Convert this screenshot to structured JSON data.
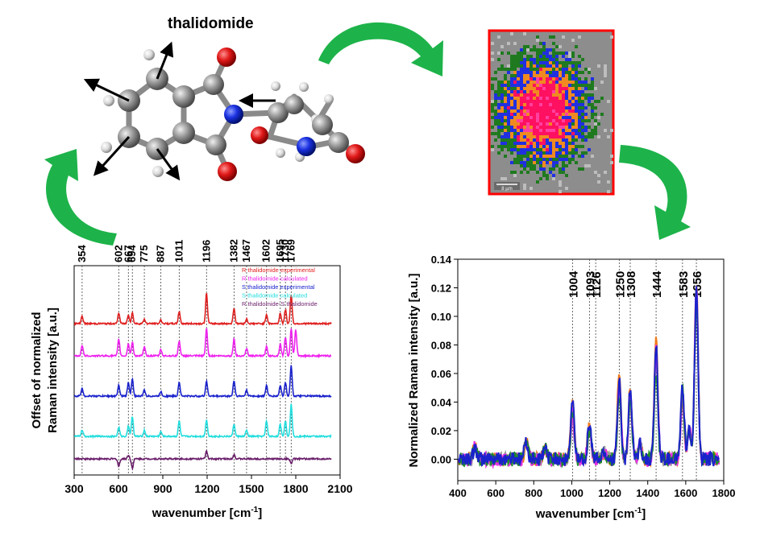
{
  "molecule": {
    "title": "thalidomide"
  },
  "scale_bar": {
    "label": "8 µm"
  },
  "colors": {
    "arrow": "#1db34a",
    "map_border": "#ff0000"
  },
  "chart_data": [
    {
      "type": "line",
      "xlabel": "wavenumber [cm",
      "xlabel_sup": "-1",
      "xlabel_end": "]",
      "ylabel_line1": "Offset of normalized",
      "ylabel_line2": "Raman intensity [a.u.]",
      "xlim": [
        300,
        2100
      ],
      "xticks": [
        "300",
        "600",
        "900",
        "1200",
        "1500",
        "1800",
        "2100"
      ],
      "peak_labels": [
        "354",
        "602",
        "667",
        "694",
        "775",
        "887",
        "1011",
        "1196",
        "1382",
        "1467",
        "1602",
        "1695",
        "1730",
        "1769"
      ],
      "peak_positions": [
        354,
        602,
        667,
        694,
        775,
        887,
        1011,
        1196,
        1382,
        1467,
        1602,
        1695,
        1730,
        1769
      ],
      "legend": [
        "R thalidomide experimental",
        "R thalidomide calculated",
        "S thalidomide experimental",
        "S thalidomide calculated",
        "R thalidomide-S thalidomide"
      ],
      "series": [
        {
          "name": "R thalidomide experimental",
          "color": "#e02020",
          "offset": 4,
          "peaks": [
            [
              354,
              0.25
            ],
            [
              602,
              0.35
            ],
            [
              667,
              0.3
            ],
            [
              694,
              0.35
            ],
            [
              775,
              0.15
            ],
            [
              887,
              0.12
            ],
            [
              1011,
              0.4
            ],
            [
              1196,
              1.0
            ],
            [
              1382,
              0.5
            ],
            [
              1467,
              0.15
            ],
            [
              1602,
              0.3
            ],
            [
              1695,
              0.35
            ],
            [
              1730,
              0.45
            ],
            [
              1769,
              0.95
            ]
          ]
        },
        {
          "name": "R thalidomide calculated",
          "color": "#ee22ee",
          "offset": 3,
          "peaks": [
            [
              354,
              0.35
            ],
            [
              602,
              0.55
            ],
            [
              667,
              0.4
            ],
            [
              694,
              0.45
            ],
            [
              775,
              0.3
            ],
            [
              887,
              0.2
            ],
            [
              1011,
              0.5
            ],
            [
              1196,
              0.9
            ],
            [
              1382,
              0.55
            ],
            [
              1467,
              0.25
            ],
            [
              1602,
              0.3
            ],
            [
              1695,
              0.4
            ],
            [
              1730,
              0.6
            ],
            [
              1769,
              0.9
            ],
            [
              1800,
              0.85
            ]
          ]
        },
        {
          "name": "S thalidomide experimental",
          "color": "#1a22cc",
          "offset": 2,
          "peaks": [
            [
              354,
              0.25
            ],
            [
              602,
              0.35
            ],
            [
              667,
              0.45
            ],
            [
              694,
              0.55
            ],
            [
              775,
              0.2
            ],
            [
              887,
              0.15
            ],
            [
              1011,
              0.45
            ],
            [
              1196,
              0.5
            ],
            [
              1382,
              0.5
            ],
            [
              1467,
              0.2
            ],
            [
              1602,
              0.35
            ],
            [
              1695,
              0.35
            ],
            [
              1730,
              0.45
            ],
            [
              1769,
              1.0
            ]
          ]
        },
        {
          "name": "S thalidomide calculated",
          "color": "#22dddd",
          "offset": 1,
          "peaks": [
            [
              354,
              0.2
            ],
            [
              602,
              0.3
            ],
            [
              667,
              0.35
            ],
            [
              694,
              0.65
            ],
            [
              775,
              0.2
            ],
            [
              887,
              0.15
            ],
            [
              1011,
              0.5
            ],
            [
              1196,
              0.55
            ],
            [
              1382,
              0.4
            ],
            [
              1467,
              0.2
            ],
            [
              1602,
              0.5
            ],
            [
              1695,
              0.4
            ],
            [
              1730,
              0.5
            ],
            [
              1769,
              1.05
            ]
          ]
        },
        {
          "name": "R thalidomide-S thalidomide",
          "color": "#6a1e6a",
          "offset": 0,
          "peaks": [
            [
              602,
              -0.25
            ],
            [
              667,
              0.12
            ],
            [
              694,
              -0.3
            ],
            [
              1196,
              0.25
            ],
            [
              1382,
              0.15
            ],
            [
              1769,
              -0.15
            ]
          ]
        }
      ]
    },
    {
      "type": "line",
      "xlabel": "wavenumber [cm",
      "xlabel_sup": "-1",
      "xlabel_end": "]",
      "ylabel": "Normalized Raman intensity [a.u.]",
      "xlim": [
        400,
        1800
      ],
      "ylim": [
        -0.015,
        0.14
      ],
      "xticks": [
        "400",
        "600",
        "800",
        "1000",
        "1200",
        "1400",
        "1600",
        "1800"
      ],
      "yticks": [
        "0.00",
        "0.02",
        "0.04",
        "0.06",
        "0.08",
        "0.10",
        "0.12",
        "0.14"
      ],
      "peak_labels": [
        "1004",
        "1093",
        "1126",
        "1250",
        "1308",
        "1444",
        "1583",
        "1656"
      ],
      "peak_positions": [
        1004,
        1093,
        1126,
        1250,
        1308,
        1444,
        1583,
        1656
      ],
      "series": [
        {
          "color": "#f07a1a",
          "peaks": [
            [
              1004,
              0.038
            ],
            [
              1093,
              0.026
            ],
            [
              1250,
              0.064
            ],
            [
              1308,
              0.05
            ],
            [
              1444,
              0.09
            ],
            [
              1583,
              0.04
            ],
            [
              1656,
              0.125
            ]
          ]
        },
        {
          "color": "#9a9a9a",
          "peaks": [
            [
              1004,
              0.03
            ],
            [
              1093,
              0.02
            ],
            [
              1250,
              0.045
            ],
            [
              1308,
              0.04
            ],
            [
              1444,
              0.07
            ],
            [
              1583,
              0.045
            ],
            [
              1656,
              0.12
            ]
          ]
        },
        {
          "color": "#e62ee6",
          "peaks": [
            [
              1004,
              0.032
            ],
            [
              1093,
              0.022
            ],
            [
              1250,
              0.052
            ],
            [
              1308,
              0.044
            ],
            [
              1444,
              0.078
            ],
            [
              1583,
              0.042
            ],
            [
              1656,
              0.12
            ]
          ]
        },
        {
          "color": "#1f8a2a",
          "peaks": [
            [
              1004,
              0.035
            ],
            [
              1093,
              0.02
            ],
            [
              1250,
              0.045
            ],
            [
              1308,
              0.045
            ],
            [
              1444,
              0.06
            ],
            [
              1583,
              0.05
            ],
            [
              1656,
              0.115
            ]
          ]
        },
        {
          "color": "#1a22cc",
          "peaks": [
            [
              1004,
              0.04
            ],
            [
              1093,
              0.025
            ],
            [
              1250,
              0.055
            ],
            [
              1308,
              0.048
            ],
            [
              1444,
              0.08
            ],
            [
              1583,
              0.05
            ],
            [
              1656,
              0.12
            ]
          ]
        }
      ]
    }
  ]
}
